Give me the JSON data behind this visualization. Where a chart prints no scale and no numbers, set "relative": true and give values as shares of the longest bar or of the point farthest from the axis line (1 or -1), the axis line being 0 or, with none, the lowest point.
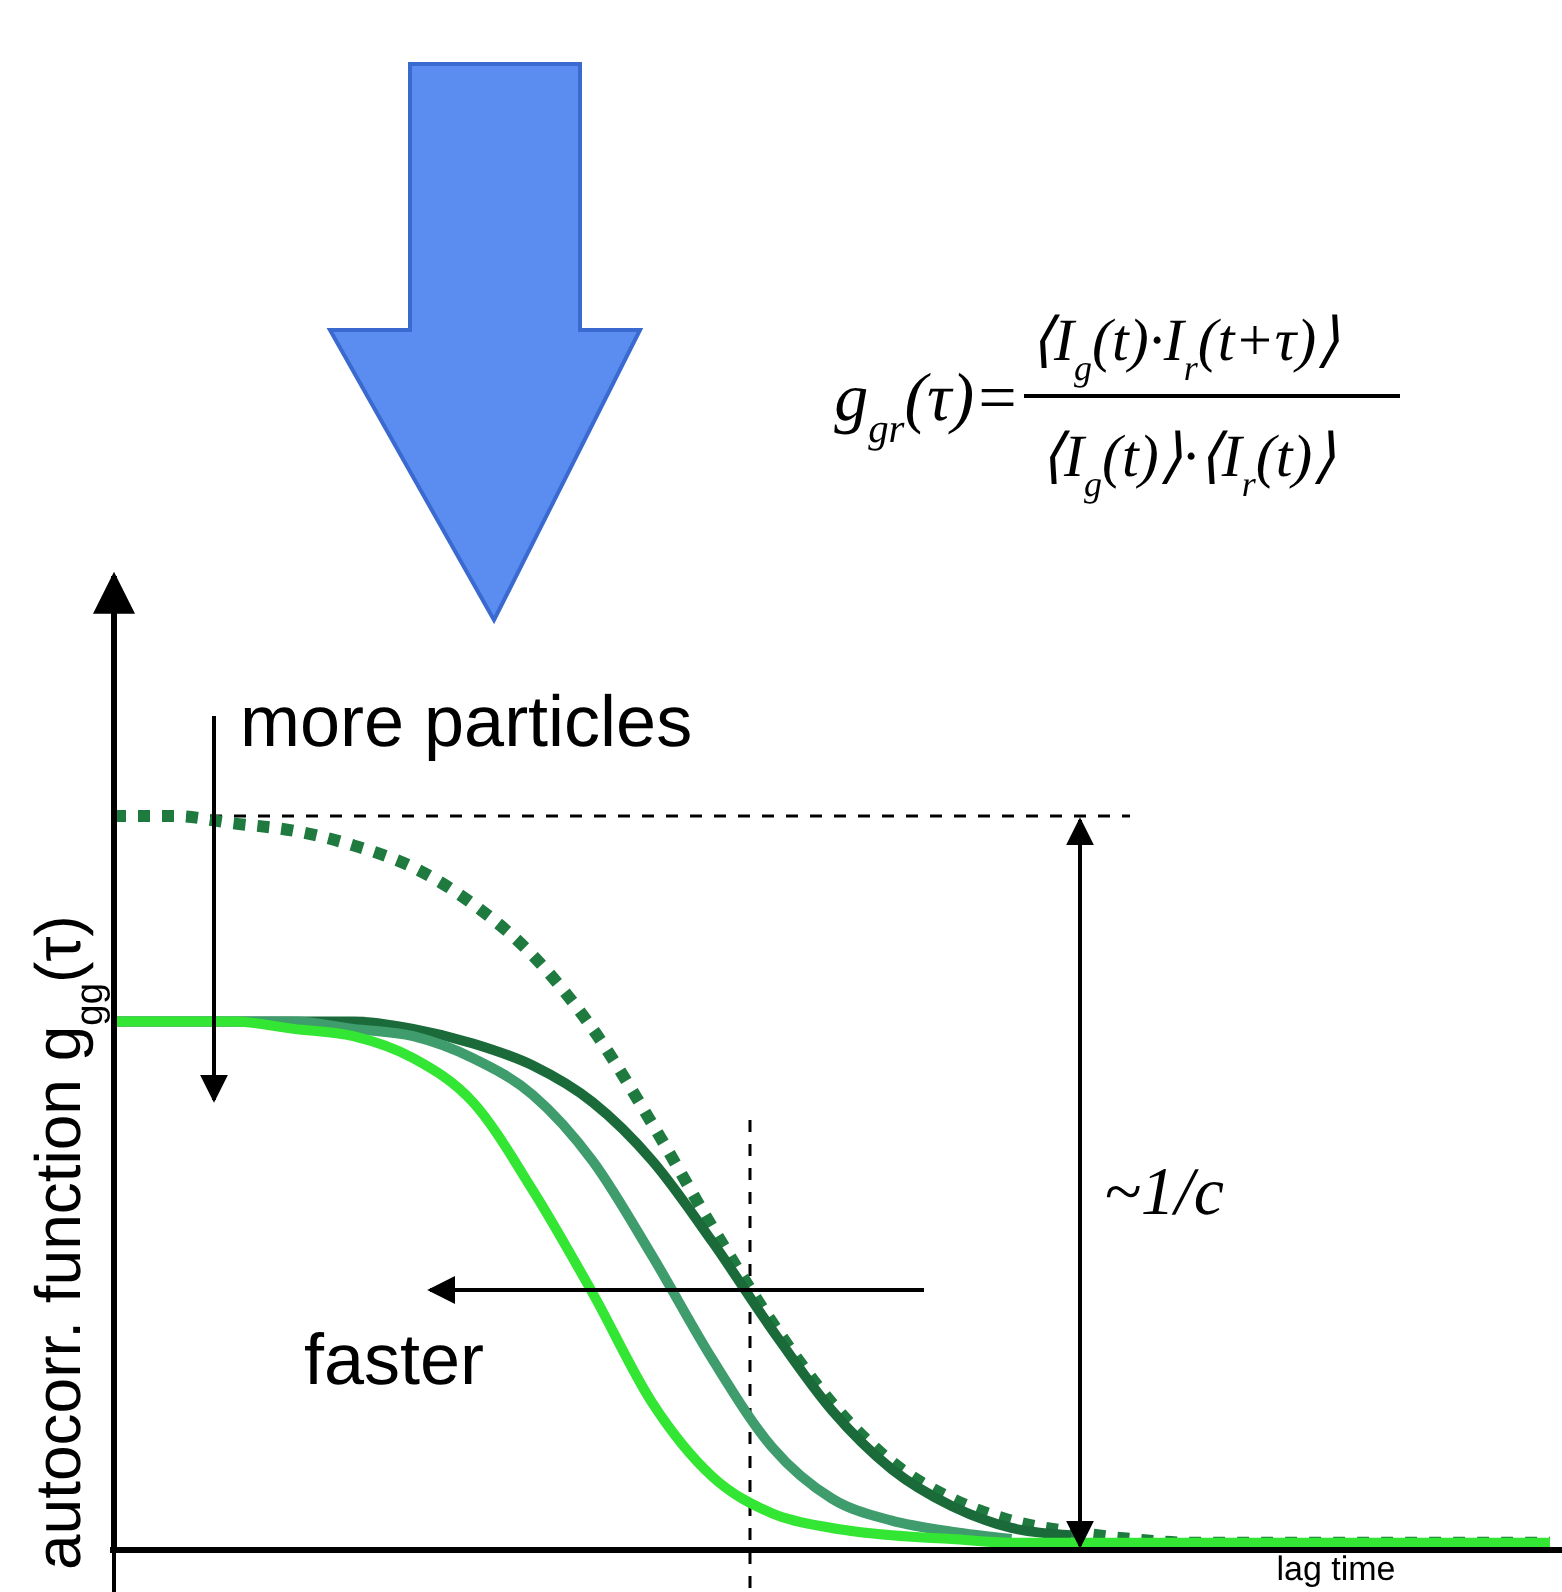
{
  "chart_data": {
    "type": "line",
    "relative": true,
    "ylabel": "autocorr. function g$_{gg}$(τ)",
    "xlabel": "lag time",
    "categories": [
      null,
      null,
      null,
      null,
      null,
      null,
      null,
      null,
      null,
      null,
      null,
      null,
      null,
      null,
      null,
      null,
      null,
      null,
      null,
      null,
      null,
      null,
      null,
      null,
      null
    ],
    "series": [
      {
        "color": "#1e7a3e",
        "line_style": "dotted",
        "values": [
          1,
          1,
          0.99,
          0.98,
          0.96,
          0.93,
          0.88,
          0.81,
          0.71,
          0.58,
          0.44,
          0.31,
          0.2,
          0.12,
          0.07,
          0.04,
          0.025,
          0.015,
          0.01,
          0.01,
          0.01,
          0.01,
          0.01,
          0.01,
          0.01
        ]
      },
      {
        "color": "#1b6b3a",
        "line_style": "solid",
        "values": [
          0.72,
          0.72,
          0.72,
          0.72,
          0.72,
          0.71,
          0.69,
          0.66,
          0.61,
          0.53,
          0.42,
          0.3,
          0.19,
          0.11,
          0.06,
          0.03,
          0.02,
          null,
          null,
          null,
          null,
          null,
          null,
          null,
          null
        ]
      },
      {
        "color": "#3f9c6c",
        "line_style": "solid",
        "values": [
          0.72,
          0.72,
          0.72,
          0.72,
          0.71,
          0.7,
          0.67,
          0.62,
          0.53,
          0.4,
          0.26,
          0.14,
          0.07,
          0.04,
          0.025,
          0.015,
          null,
          null,
          null,
          null,
          null,
          null,
          null,
          null,
          null
        ]
      },
      {
        "color": "#33e633",
        "line_style": "solid",
        "values": [
          0.72,
          0.72,
          0.72,
          0.71,
          0.7,
          0.67,
          0.61,
          0.49,
          0.35,
          0.2,
          0.1,
          0.05,
          0.03,
          0.02,
          0.015,
          0.01,
          0.01,
          0.01,
          0.01,
          0.01,
          0.01,
          0.01,
          0.01,
          0.01,
          0.01
        ]
      }
    ],
    "ref_lines": [
      {
        "axis": "y",
        "value": 1,
        "line_style": "dotted",
        "color": "#000000"
      }
    ],
    "annotations": [
      "g$_{gr}$(τ)=",
      "⟨I$_{g}$(t)·I$_{r}$(t+τ)⟩",
      "⟨I$_{g}$(t)⟩·⟨I$_{r}$(t)⟩",
      "more particles",
      "faster",
      "~1/c"
    ]
  }
}
